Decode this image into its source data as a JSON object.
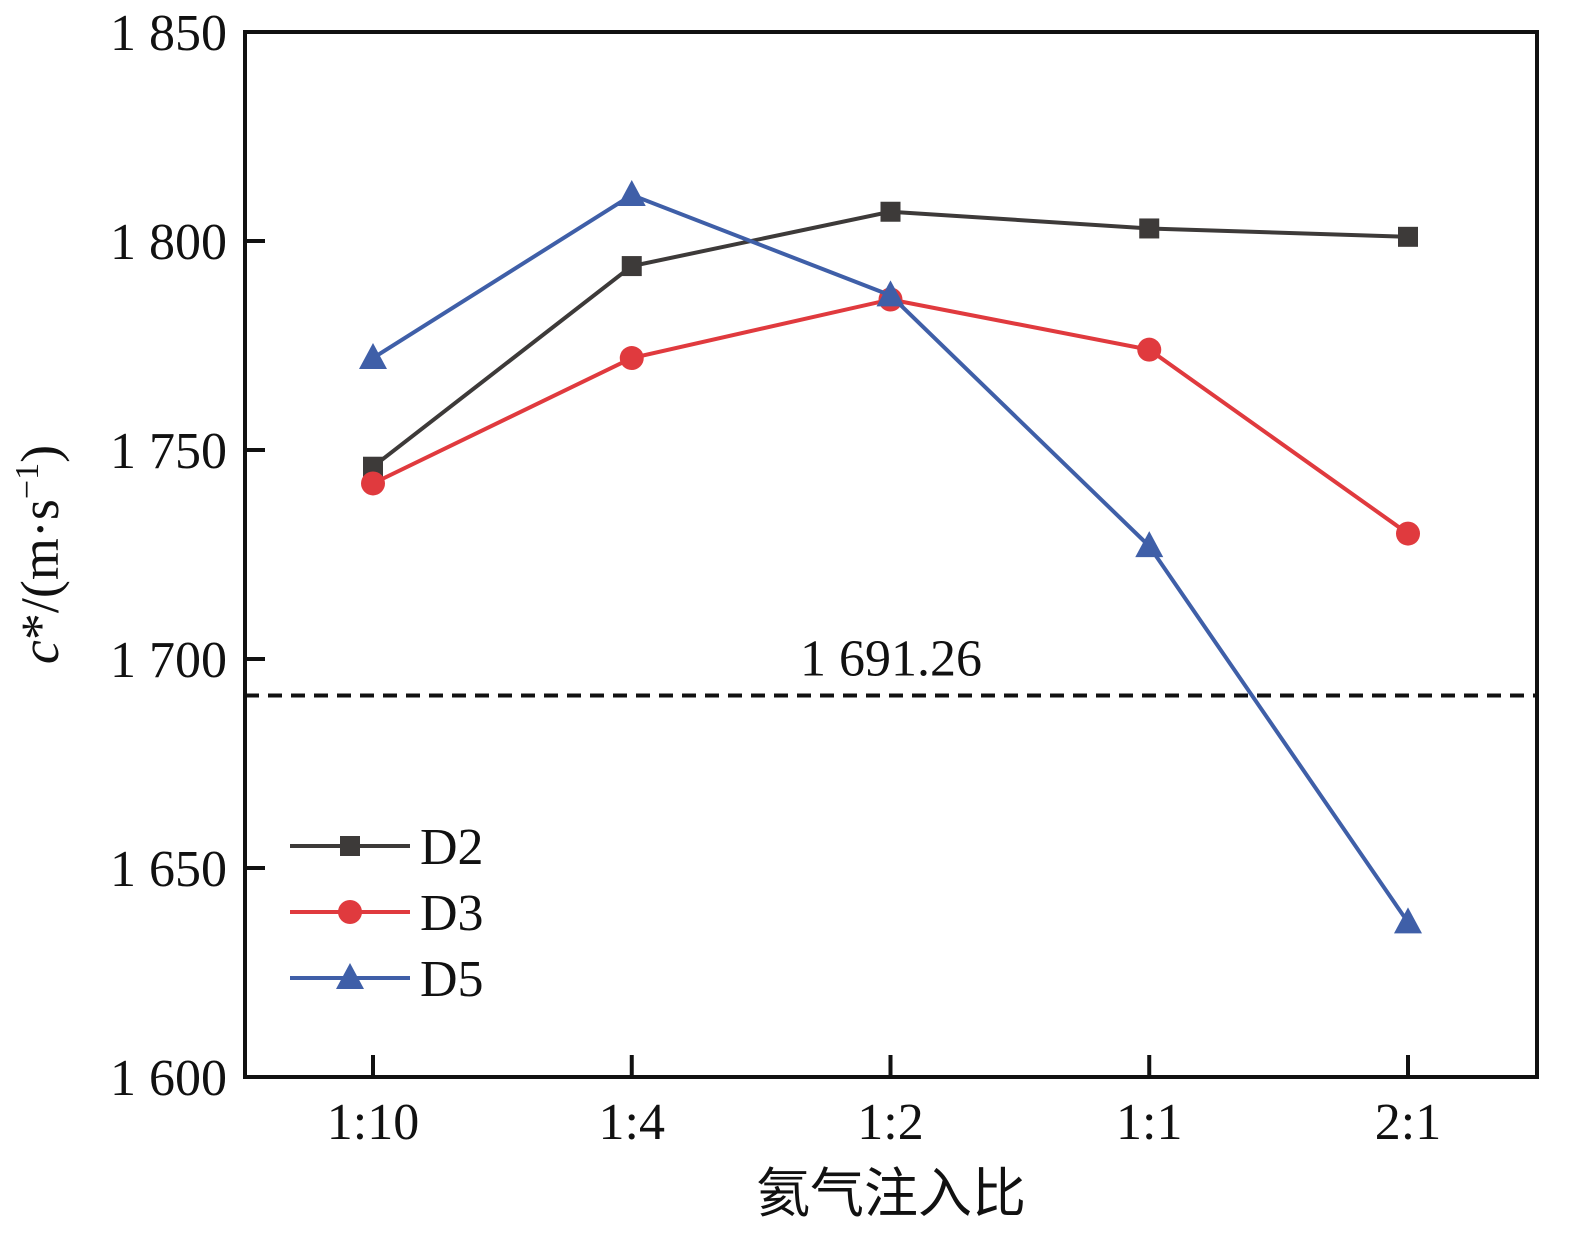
{
  "chart_data": {
    "type": "line",
    "title": "",
    "xlabel": "氦气注入比",
    "ylabel_main": "c",
    "ylabel_star": "*",
    "ylabel_unit_open": "/(m·s",
    "ylabel_unit_exp": "−1",
    "ylabel_unit_close": ")",
    "categories": [
      "1:10",
      "1:4",
      "1:2",
      "1:1",
      "2:1"
    ],
    "ylim": [
      1600,
      1850
    ],
    "yticks": [
      1600,
      1650,
      1700,
      1750,
      1800,
      1850
    ],
    "ytick_labels": [
      "1 600",
      "1 650",
      "1 700",
      "1 750",
      "1 800",
      "1 850"
    ],
    "grid": false,
    "legend_position": "bottom-left",
    "series": [
      {
        "name": "D2",
        "marker": "square",
        "color": "#3d3a39",
        "values": [
          1746,
          1794,
          1807,
          1803,
          1801
        ]
      },
      {
        "name": "D3",
        "marker": "circle",
        "color": "#e03a3e",
        "values": [
          1742,
          1772,
          1786,
          1774,
          1730
        ]
      },
      {
        "name": "D5",
        "marker": "triangle",
        "color": "#3f5fa8",
        "values": [
          1772,
          1811,
          1787,
          1727,
          1637
        ]
      }
    ],
    "reference_line": {
      "value": 1691.26,
      "label": "1 691.26",
      "style": "dashed",
      "color": "#111111"
    }
  }
}
